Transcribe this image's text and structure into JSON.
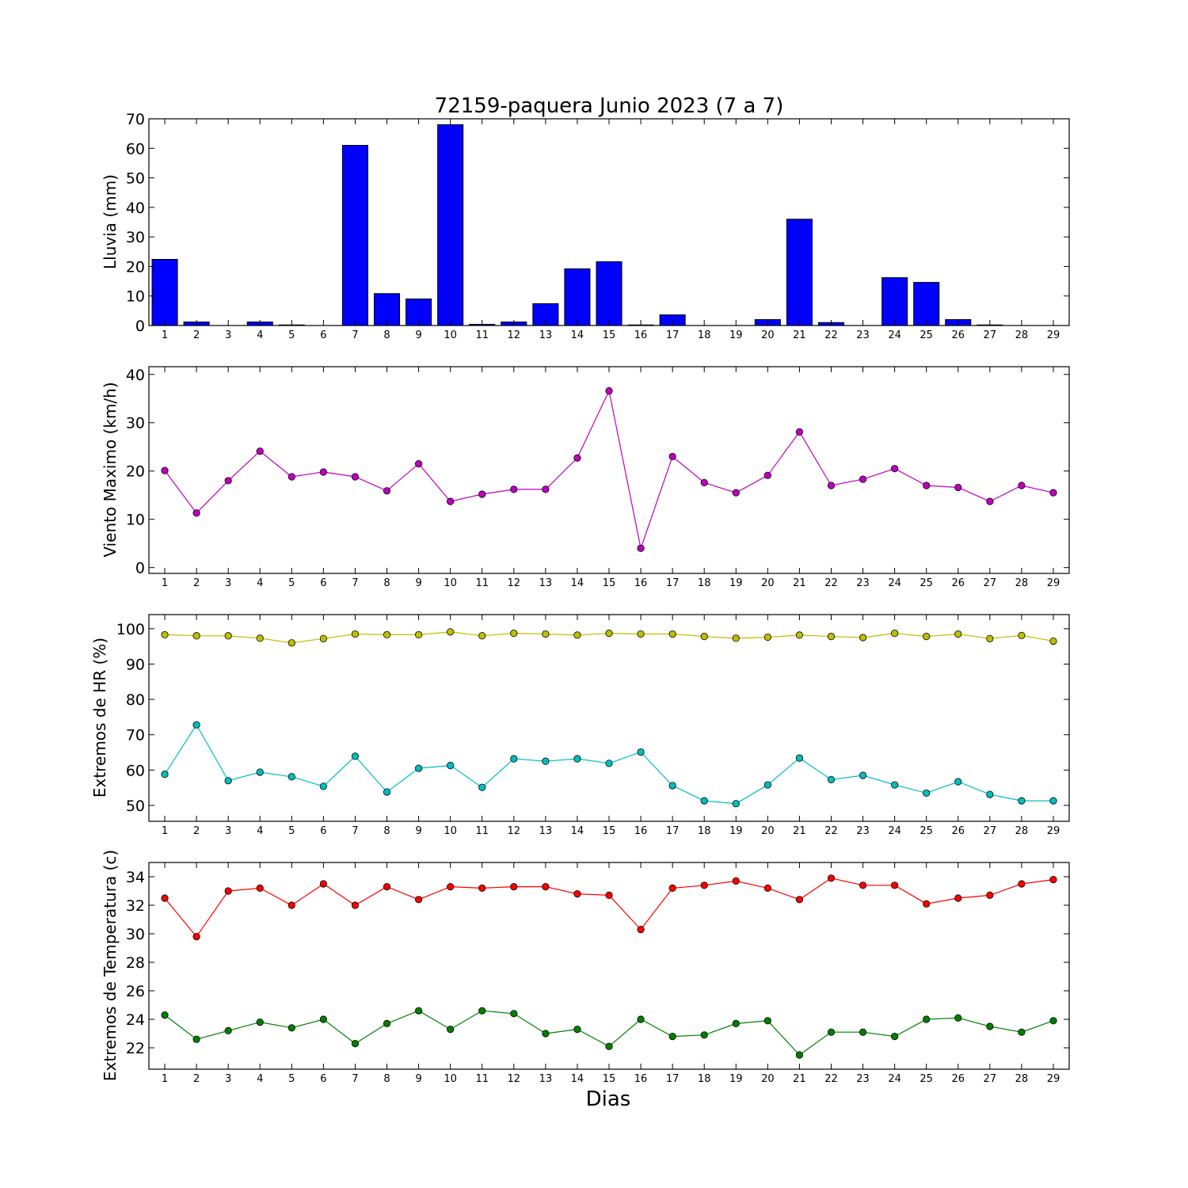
{
  "figure": {
    "title": "72159-paquera Junio 2023  (7 a 7)",
    "xlabel": "Dias"
  },
  "chart_data": [
    {
      "type": "bar",
      "ylabel": "Lluvia (mm)",
      "ylim": [
        0,
        70
      ],
      "yticks": [
        0,
        10,
        20,
        30,
        40,
        50,
        60,
        70
      ],
      "xlim": [
        0.5,
        29.5
      ],
      "categories": [
        1,
        2,
        3,
        4,
        5,
        6,
        7,
        8,
        9,
        10,
        11,
        12,
        13,
        14,
        15,
        16,
        17,
        18,
        19,
        20,
        21,
        22,
        23,
        24,
        25,
        26,
        27,
        28,
        29
      ],
      "series": [
        {
          "color": "#0000ff",
          "values": [
            22.4,
            1.2,
            0,
            1.2,
            0.2,
            0,
            61,
            10.8,
            9,
            68,
            0.4,
            1.2,
            7.4,
            19.2,
            21.6,
            0.2,
            3.6,
            0,
            0,
            2,
            36,
            1,
            0,
            16.2,
            14.6,
            2,
            0.2,
            0,
            0
          ]
        }
      ],
      "grid": false
    },
    {
      "type": "line",
      "ylabel": "Viento Maximo (km/h)",
      "ylim": [
        -1.2,
        41.6
      ],
      "yticks": [
        0,
        10,
        20,
        30,
        40
      ],
      "xlim": [
        0.5,
        29.5
      ],
      "x": [
        1,
        2,
        3,
        4,
        5,
        6,
        7,
        8,
        9,
        10,
        11,
        12,
        13,
        14,
        15,
        16,
        17,
        18,
        19,
        20,
        21,
        22,
        23,
        24,
        25,
        26,
        27,
        28,
        29
      ],
      "series": [
        {
          "color": "#bf00bf",
          "values": [
            20.1,
            11.3,
            18,
            24.1,
            18.8,
            19.8,
            18.8,
            15.9,
            21.5,
            13.7,
            15.2,
            16.2,
            16.2,
            22.7,
            36.6,
            4,
            23,
            17.6,
            15.5,
            19.1,
            28.1,
            17,
            18.3,
            20.5,
            17,
            16.6,
            13.7,
            17,
            15.5
          ]
        }
      ],
      "grid": false
    },
    {
      "type": "line",
      "ylabel": "Extremos de HR (%)",
      "ylim": [
        45.5,
        104
      ],
      "yticks": [
        50,
        60,
        70,
        80,
        90,
        100
      ],
      "xlim": [
        0.5,
        29.5
      ],
      "x": [
        1,
        2,
        3,
        4,
        5,
        6,
        7,
        8,
        9,
        10,
        11,
        12,
        13,
        14,
        15,
        16,
        17,
        18,
        19,
        20,
        21,
        22,
        23,
        24,
        25,
        26,
        27,
        28,
        29
      ],
      "series": [
        {
          "color": "#bfbf00",
          "values": [
            98.3,
            98,
            98,
            97.3,
            96,
            97.2,
            98.5,
            98.3,
            98.3,
            99.1,
            98,
            98.7,
            98.5,
            98.2,
            98.7,
            98.5,
            98.5,
            97.8,
            97.3,
            97.6,
            98.2,
            97.8,
            97.5,
            98.7,
            97.8,
            98.5,
            97.2,
            98.1,
            96.5
          ]
        },
        {
          "color": "#00bfbf",
          "values": [
            58.8,
            72.8,
            57,
            59.4,
            58.1,
            55.4,
            63.9,
            53.8,
            60.5,
            61.3,
            55.1,
            63.2,
            62.5,
            63.2,
            61.9,
            65.1,
            55.6,
            51.3,
            50.5,
            55.8,
            63.4,
            57.3,
            58.5,
            55.8,
            53.5,
            56.7,
            53.1,
            51.3,
            51.3
          ]
        }
      ],
      "grid": false
    },
    {
      "type": "line",
      "ylabel": "Extremos de Temperatura (c)",
      "ylim": [
        20.5,
        35
      ],
      "yticks": [
        22,
        24,
        26,
        28,
        30,
        32,
        34
      ],
      "xlim": [
        0.5,
        29.5
      ],
      "x": [
        1,
        2,
        3,
        4,
        5,
        6,
        7,
        8,
        9,
        10,
        11,
        12,
        13,
        14,
        15,
        16,
        17,
        18,
        19,
        20,
        21,
        22,
        23,
        24,
        25,
        26,
        27,
        28,
        29
      ],
      "series": [
        {
          "color": "#ff0000",
          "values": [
            32.5,
            29.8,
            33,
            33.2,
            32,
            33.5,
            32,
            33.3,
            32.4,
            33.3,
            33.2,
            33.3,
            33.3,
            32.8,
            32.7,
            30.3,
            33.2,
            33.4,
            33.7,
            33.2,
            32.4,
            33.9,
            33.4,
            33.4,
            32.1,
            32.5,
            32.7,
            33.5,
            33.8
          ]
        },
        {
          "color": "#008000",
          "values": [
            24.3,
            22.6,
            23.2,
            23.8,
            23.4,
            24,
            22.3,
            23.7,
            24.6,
            23.3,
            24.6,
            24.4,
            23,
            23.3,
            22.1,
            24,
            22.8,
            22.9,
            23.7,
            23.9,
            21.5,
            23.1,
            23.1,
            22.8,
            24,
            24.1,
            23.5,
            23.1,
            23.9
          ]
        }
      ],
      "grid": false
    }
  ]
}
